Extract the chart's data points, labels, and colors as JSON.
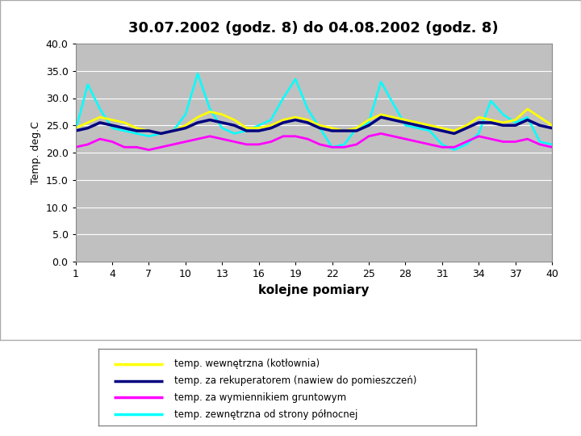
{
  "title": "30.07.2002 (godz. 8) do 04.08.2002 (godz. 8)",
  "xlabel": "kolejne pomiary",
  "ylabel": "Temp. deg.C",
  "ylim": [
    0,
    40
  ],
  "yticks": [
    0.0,
    5.0,
    10.0,
    15.0,
    20.0,
    25.0,
    30.0,
    35.0,
    40.0
  ],
  "xticks": [
    1,
    4,
    7,
    10,
    13,
    16,
    19,
    22,
    25,
    28,
    31,
    34,
    37,
    40
  ],
  "plot_bg": "#C0C0C0",
  "fig_bg": "#FFFFFF",
  "outer_box_bg": "#FFFFFF",
  "legend_box_bg": "#FFFFFF",
  "series": {
    "wewnetrzna": {
      "label": "temp. wewnętrzna (kotłownia)",
      "color": "#FFFF00",
      "linewidth": 2.0,
      "data": [
        24.5,
        25.5,
        26.5,
        26.0,
        25.5,
        24.5,
        24.0,
        23.5,
        24.0,
        25.0,
        26.5,
        27.5,
        27.0,
        26.0,
        24.5,
        24.5,
        25.0,
        26.0,
        26.5,
        26.0,
        25.0,
        24.5,
        24.0,
        24.5,
        26.0,
        27.0,
        26.5,
        26.0,
        25.5,
        25.0,
        24.5,
        24.0,
        25.0,
        26.5,
        26.0,
        25.5,
        26.0,
        28.0,
        26.5,
        25.0
      ]
    },
    "rekuperator": {
      "label": "temp. za rekuperatorem (nawiew do pomieszczeń)",
      "color": "#000080",
      "linewidth": 2.5,
      "data": [
        24.0,
        24.5,
        25.5,
        25.0,
        24.5,
        24.0,
        24.0,
        23.5,
        24.0,
        24.5,
        25.5,
        26.0,
        25.5,
        25.0,
        24.0,
        24.0,
        24.5,
        25.5,
        26.0,
        25.5,
        24.5,
        24.0,
        24.0,
        24.0,
        25.0,
        26.5,
        26.0,
        25.5,
        25.0,
        24.5,
        24.0,
        23.5,
        24.5,
        25.5,
        25.5,
        25.0,
        25.0,
        26.0,
        25.0,
        24.5
      ]
    },
    "wymiennik": {
      "label": "temp. za wymiennikiem gruntowym",
      "color": "#FF00FF",
      "linewidth": 2.0,
      "data": [
        21.0,
        21.5,
        22.5,
        22.0,
        21.0,
        21.0,
        20.5,
        21.0,
        21.5,
        22.0,
        22.5,
        23.0,
        22.5,
        22.0,
        21.5,
        21.5,
        22.0,
        23.0,
        23.0,
        22.5,
        21.5,
        21.0,
        21.0,
        21.5,
        23.0,
        23.5,
        23.0,
        22.5,
        22.0,
        21.5,
        21.0,
        21.0,
        22.0,
        23.0,
        22.5,
        22.0,
        22.0,
        22.5,
        21.5,
        21.0
      ]
    },
    "zewnetrzna": {
      "label": "temp. zewnętrzna od strony północnej",
      "color": "#00FFFF",
      "linewidth": 1.8,
      "data": [
        24.0,
        32.5,
        28.0,
        24.5,
        24.0,
        23.5,
        23.0,
        23.5,
        24.0,
        27.0,
        34.5,
        28.0,
        24.5,
        23.5,
        24.0,
        25.0,
        26.0,
        30.0,
        33.5,
        28.0,
        24.5,
        21.0,
        21.5,
        24.5,
        25.5,
        33.0,
        29.0,
        25.0,
        24.5,
        24.0,
        21.5,
        20.5,
        21.5,
        23.5,
        29.5,
        27.0,
        25.5,
        26.5,
        22.0,
        21.5
      ]
    }
  },
  "legend_items": [
    {
      "key": "wewnetrzna"
    },
    {
      "key": "rekuperator"
    },
    {
      "key": "wymiennik"
    },
    {
      "key": "zewnetrzna"
    }
  ]
}
